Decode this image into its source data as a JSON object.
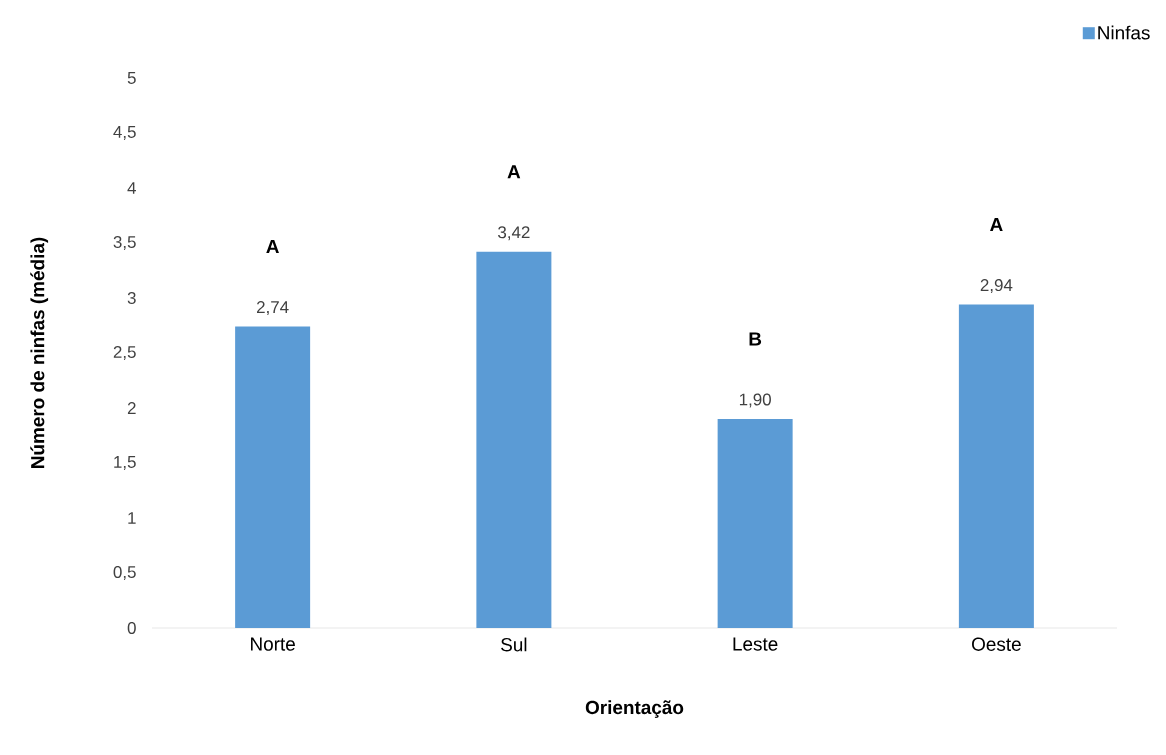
{
  "chart_data": {
    "type": "bar",
    "xlabel": "Orientação",
    "ylabel": "Número de ninfas (média)",
    "categories": [
      "Norte",
      "Sul",
      "Leste",
      "Oeste"
    ],
    "series": [
      {
        "name": "Ninfas",
        "color": "#5b9bd5",
        "values": [
          2.74,
          3.42,
          1.9,
          2.94
        ],
        "value_labels": [
          "2,74",
          "3,42",
          "1,90",
          "2,94"
        ]
      }
    ],
    "ylim": [
      0,
      5
    ],
    "yticks": [
      0,
      {
        "value": 0.5,
        "label": "0,5"
      },
      1,
      {
        "value": 1.5,
        "label": "1,5"
      },
      2,
      {
        "value": 2.5,
        "label": "2,5"
      },
      3,
      {
        "value": 3.5,
        "label": "3,5"
      },
      4,
      {
        "value": 4.5,
        "label": "4,5"
      },
      5
    ],
    "annotations": [
      "A",
      "A",
      "B",
      "A"
    ],
    "legend": "top right"
  }
}
